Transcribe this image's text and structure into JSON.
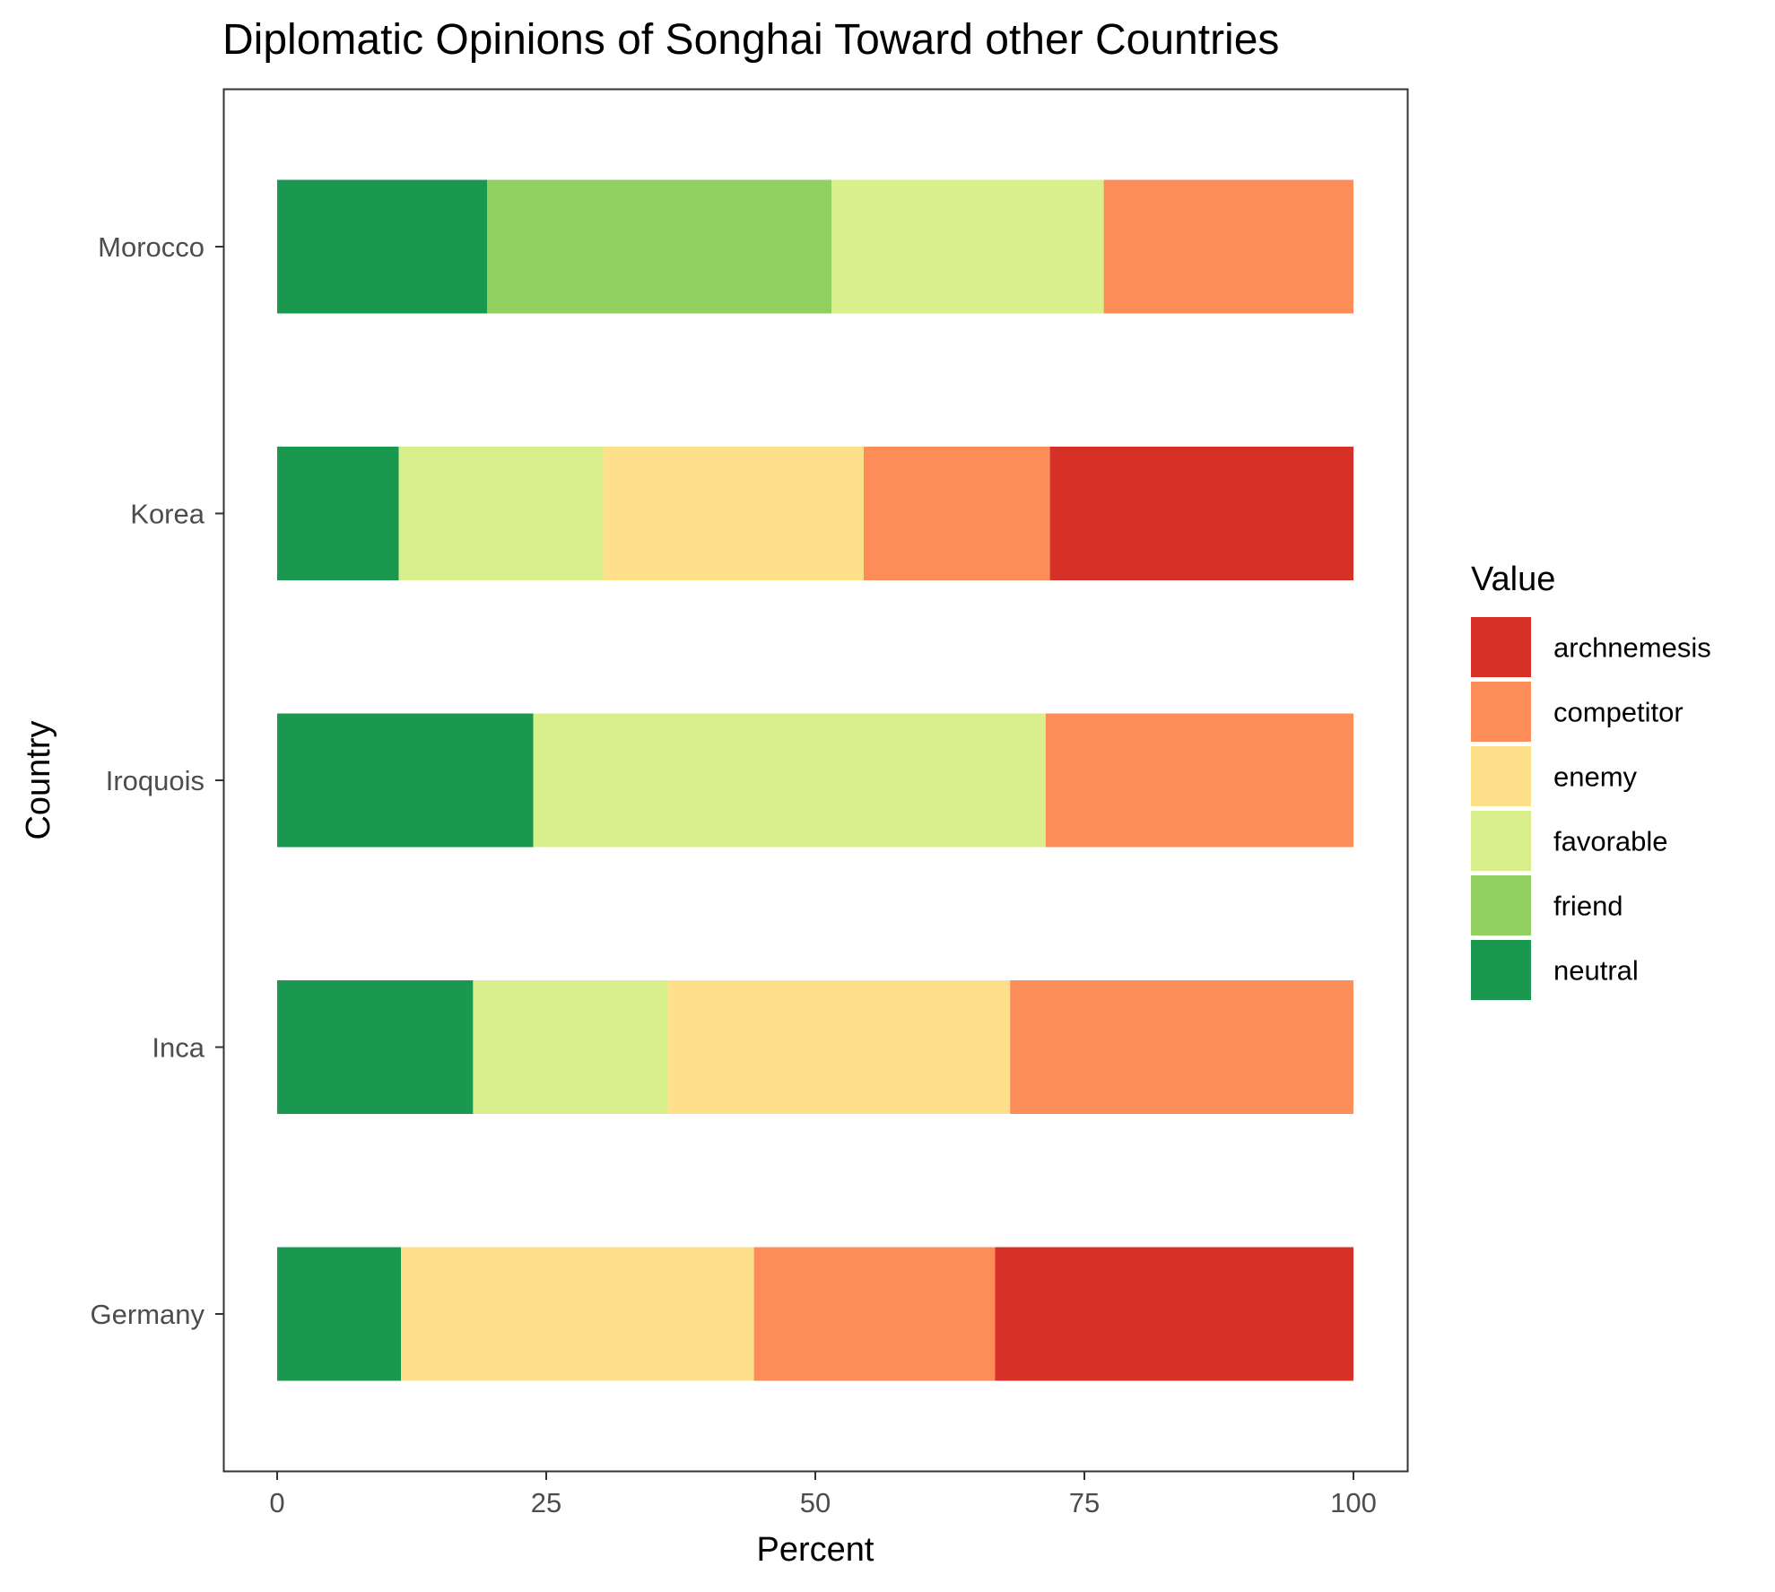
{
  "chart_data": {
    "type": "bar",
    "orientation": "horizontal",
    "stacked": true,
    "title": "Diplomatic Opinions of Songhai Toward other Countries",
    "xlabel": "Percent",
    "ylabel": "Country",
    "xlim": [
      0,
      100
    ],
    "x_ticks": [
      "0",
      "25",
      "50",
      "75",
      "100"
    ],
    "x_tick_values": [
      0,
      25,
      50,
      75,
      100
    ],
    "categories": [
      "Germany",
      "Inca",
      "Iroquois",
      "Korea",
      "Morocco"
    ],
    "stack_order": [
      "neutral",
      "friend",
      "favorable",
      "enemy",
      "competitor",
      "archnemesis"
    ],
    "series": [
      {
        "name": "archnemesis",
        "color": "#d73027",
        "values": [
          33.3,
          0,
          0,
          28.2,
          0
        ]
      },
      {
        "name": "competitor",
        "color": "#fc8d59",
        "values": [
          22.4,
          31.9,
          28.6,
          17.3,
          23.2
        ]
      },
      {
        "name": "enemy",
        "color": "#fee08b",
        "values": [
          32.8,
          31.8,
          0,
          24.2,
          0
        ]
      },
      {
        "name": "favorable",
        "color": "#d9ef8b",
        "values": [
          0,
          18.1,
          47.6,
          19.0,
          25.3
        ]
      },
      {
        "name": "friend",
        "color": "#91cf60",
        "values": [
          0,
          0,
          0,
          0,
          32.0
        ]
      },
      {
        "name": "neutral",
        "color": "#1a9850",
        "values": [
          11.5,
          18.2,
          23.8,
          11.3,
          19.5
        ]
      }
    ],
    "legend": {
      "title": "Value",
      "position": "right",
      "entries": [
        "archnemesis",
        "competitor",
        "enemy",
        "favorable",
        "friend",
        "neutral"
      ]
    },
    "grid": false,
    "panel_border": true
  }
}
